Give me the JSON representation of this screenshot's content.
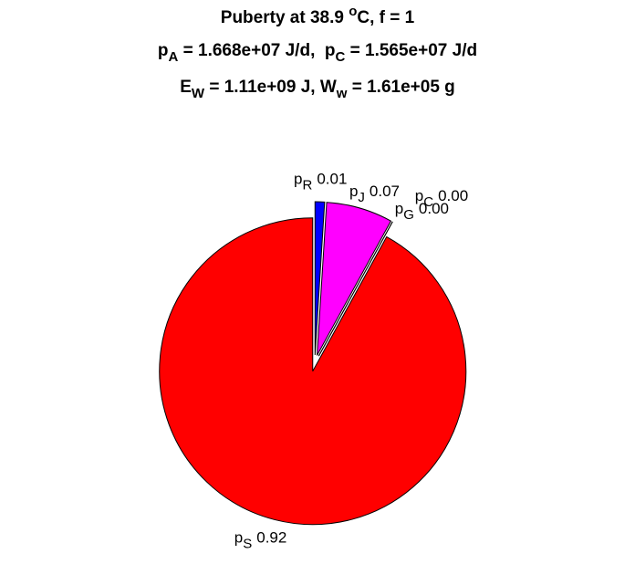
{
  "chart_data": {
    "type": "pie",
    "title": [
      [
        {
          "text": "Puberty at 38.9 "
        },
        {
          "text": "o",
          "style": "sup"
        },
        {
          "text": "C, f = 1"
        }
      ],
      [
        {
          "text": "p"
        },
        {
          "text": "A",
          "style": "sub"
        },
        {
          "text": " = 1.668e+07 J/d,  p"
        },
        {
          "text": "C",
          "style": "sub"
        },
        {
          "text": " = 1.565e+07 J/d"
        }
      ],
      [
        {
          "text": "E"
        },
        {
          "text": "W",
          "style": "sub"
        },
        {
          "text": " = 1.11e+09 J, W"
        },
        {
          "text": "w",
          "style": "sub"
        },
        {
          "text": " = 1.61e+05 g"
        }
      ]
    ],
    "categories": [
      {
        "base": "p",
        "sub": "R"
      },
      {
        "base": "p",
        "sub": "J"
      },
      {
        "base": "p",
        "sub": "C"
      },
      {
        "base": "p",
        "sub": "G"
      },
      {
        "base": "p",
        "sub": "S"
      }
    ],
    "values": [
      0.01,
      0.07,
      0.0,
      0.0,
      0.92
    ],
    "value_labels": [
      "0.01",
      "0.07",
      "0.00",
      "0.00",
      "0.92"
    ],
    "colors": [
      "#0000ff",
      "#ff00ff",
      "#00ffff",
      "#00ff00",
      "#ff0000"
    ],
    "explode": true
  }
}
